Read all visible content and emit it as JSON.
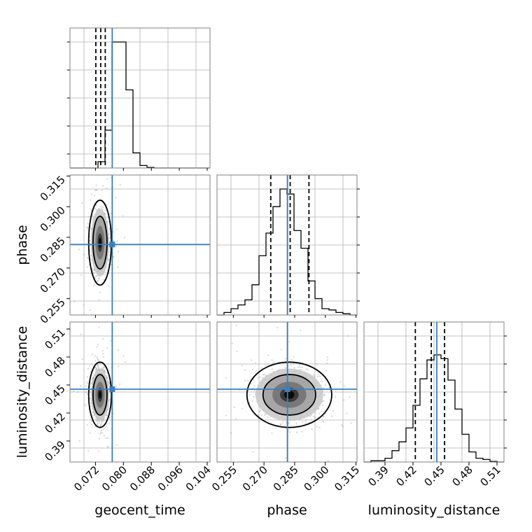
{
  "chart_data": {
    "type": "corner",
    "parameters": [
      {
        "name": "geocent_time",
        "truth": 0.0768,
        "range": [
          0.0647,
          0.1048
        ],
        "ticks": [
          "0.072",
          "0.080",
          "0.088",
          "0.096",
          "0.104"
        ],
        "quantiles": [
          0.0721,
          0.0735,
          0.0748
        ],
        "hist": [
          0,
          0,
          0,
          0,
          0.05,
          0.3,
          1.0,
          1.0,
          0.62,
          0.12,
          0.02,
          0.005,
          0,
          0,
          0,
          0,
          0,
          0,
          0,
          0
        ],
        "center": 0.0733,
        "sd": 0.0013
      },
      {
        "name": "phase",
        "truth": 0.2815,
        "range": [
          0.247,
          0.3155
        ],
        "ticks": [
          "0.255",
          "0.270",
          "0.285",
          "0.300",
          "0.315"
        ],
        "quantiles": [
          0.2733,
          0.2828,
          0.292
        ],
        "hist": [
          0,
          0.02,
          0.05,
          0.08,
          0.12,
          0.24,
          0.47,
          0.65,
          0.86,
          1.0,
          0.96,
          0.67,
          0.53,
          0.27,
          0.13,
          0.05,
          0.04,
          0.02,
          0.01,
          0
        ],
        "center": 0.2824,
        "sd": 0.0083
      },
      {
        "name": "luminosity_distance",
        "truth": 0.4455,
        "range": [
          0.3675,
          0.5175
        ],
        "ticks": [
          "0.39",
          "0.42",
          "0.45",
          "0.48",
          "0.51"
        ],
        "quantiles": [
          0.4225,
          0.4396,
          0.4538
        ],
        "hist": [
          0,
          0.01,
          0.01,
          0.03,
          0.09,
          0.16,
          0.27,
          0.45,
          0.66,
          0.81,
          0.85,
          0.82,
          0.65,
          0.42,
          0.22,
          0.08,
          0.03,
          0.02,
          0.005,
          0
        ],
        "center": 0.4395,
        "sd": 0.014
      }
    ],
    "grid": true,
    "contour_levels": [
      "1-sigma",
      "2-sigma"
    ],
    "truth_color": "#3a7fc0"
  }
}
